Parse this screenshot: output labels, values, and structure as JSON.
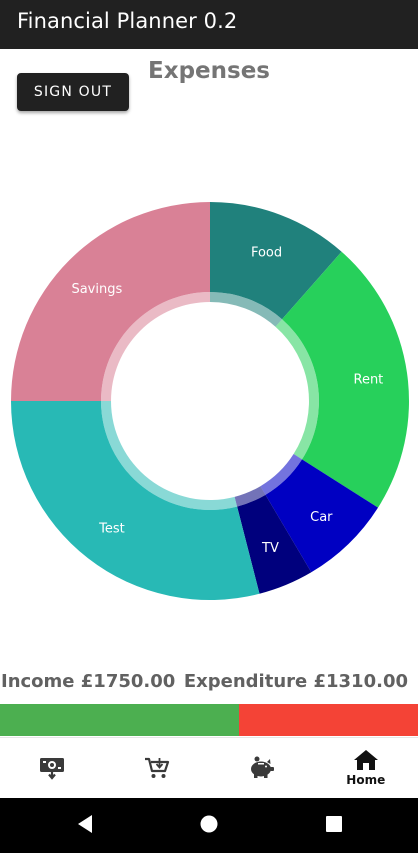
{
  "app": {
    "title": "Financial Planner 0.2"
  },
  "header": {
    "sign_out_label": "SIGN OUT",
    "page_title": "Expenses"
  },
  "chart_data": {
    "type": "pie",
    "title": "Expenses",
    "slices": [
      {
        "label": "Food",
        "value": 11.5,
        "color": "#20817c"
      },
      {
        "label": "Rent",
        "value": 22.5,
        "color": "#27d05b"
      },
      {
        "label": "Car",
        "value": 7.5,
        "color": "#0000c2"
      },
      {
        "label": "TV",
        "value": 4.5,
        "color": "#00007d"
      },
      {
        "label": "Test",
        "value": 29.0,
        "color": "#28b9b5"
      },
      {
        "label": "Savings",
        "value": 25.0,
        "color": "#d98196"
      }
    ]
  },
  "summary": {
    "income_label": "Income £1750.00",
    "expenditure_label": "Expenditure £1310.00",
    "income_value": 1750.0,
    "expenditure_value": 1310.0,
    "income_color": "#4caf50",
    "expenditure_color": "#f44336"
  },
  "nav": {
    "items": [
      {
        "icon": "money-transfer-icon",
        "label": ""
      },
      {
        "icon": "shopping-cart-icon",
        "label": ""
      },
      {
        "icon": "piggy-bank-icon",
        "label": ""
      },
      {
        "icon": "home-icon",
        "label": "Home"
      }
    ]
  },
  "system_nav": {
    "icons": [
      "back-icon",
      "home-circle-icon",
      "recents-icon"
    ]
  }
}
